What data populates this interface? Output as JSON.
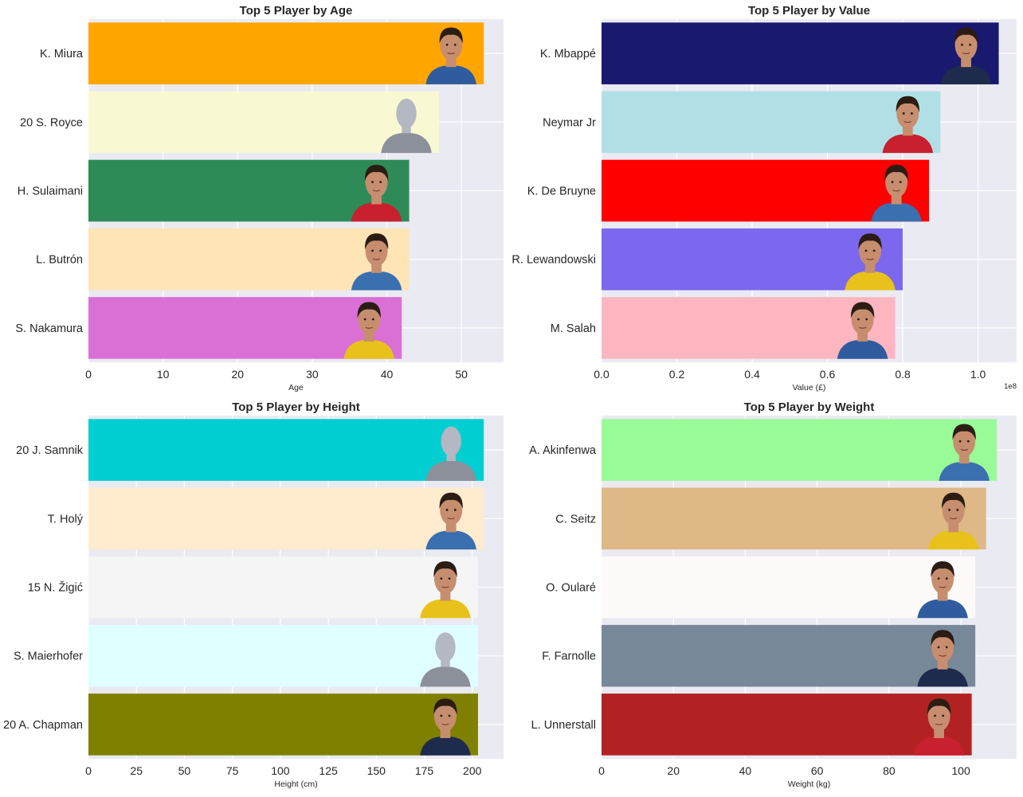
{
  "chart_data": [
    {
      "type": "bar",
      "orientation": "horizontal",
      "title": "Top 5 Player by Age",
      "xlabel": "Age",
      "ylabel": "",
      "xlim": [
        0,
        55.65
      ],
      "xticks": [
        0,
        10,
        20,
        30,
        40,
        50
      ],
      "xtick_labels": [
        "0",
        "10",
        "20",
        "30",
        "40",
        "50"
      ],
      "offset_text": "",
      "grid": true,
      "categories": [
        "K. Miura",
        "20 S. Royce",
        "H. Sulaimani",
        "L. Butrón",
        "S. Nakamura"
      ],
      "values": [
        53,
        47,
        43,
        43,
        42
      ],
      "colors": [
        "#FFA500",
        "#F8F9D2",
        "#2E8B57",
        "#FFE4B5",
        "#DA70D6"
      ],
      "photos": [
        "face",
        "silhouette",
        "face",
        "face",
        "face"
      ]
    },
    {
      "type": "bar",
      "orientation": "horizontal",
      "title": "Top 5 Player by Value",
      "xlabel": "Value (£)",
      "ylabel": "",
      "xlim": [
        0,
        1.1025
      ],
      "xticks": [
        0.0,
        0.2,
        0.4,
        0.6,
        0.8,
        1.0
      ],
      "xtick_labels": [
        "0.0",
        "0.2",
        "0.4",
        "0.6",
        "0.8",
        "1.0"
      ],
      "offset_text": "1e8",
      "grid": true,
      "categories": [
        "K. Mbappé",
        "Neymar Jr",
        "K. De Bruyne",
        "R. Lewandowski",
        "M. Salah"
      ],
      "values": [
        1.055,
        0.9,
        0.87,
        0.8,
        0.78
      ],
      "colors": [
        "#191970",
        "#B0E0E6",
        "#FF0000",
        "#7B68EE",
        "#FFB6C1"
      ],
      "photos": [
        "face",
        "face",
        "face",
        "face",
        "face"
      ]
    },
    {
      "type": "bar",
      "orientation": "horizontal",
      "title": "Top 5 Player by Height",
      "xlabel": "Height (cm)",
      "ylabel": "",
      "xlim": [
        0,
        216.3
      ],
      "xticks": [
        0,
        25,
        50,
        75,
        100,
        125,
        150,
        175,
        200
      ],
      "xtick_labels": [
        "0",
        "25",
        "50",
        "75",
        "100",
        "125",
        "150",
        "175",
        "200"
      ],
      "offset_text": "",
      "grid": true,
      "categories": [
        "20 J. Samnik",
        "T. Holý",
        "15 N. Žigić",
        "S. Maierhofer",
        "20 A. Chapman"
      ],
      "values": [
        206,
        206,
        203,
        203,
        203
      ],
      "colors": [
        "#00CED1",
        "#FFEBCD",
        "#F5F5F5",
        "#E0FFFF",
        "#808000"
      ],
      "photos": [
        "silhouette",
        "face",
        "face",
        "silhouette",
        "face"
      ]
    },
    {
      "type": "bar",
      "orientation": "horizontal",
      "title": "Top 5 Player by Weight",
      "xlabel": "Weight (kg)",
      "ylabel": "",
      "xlim": [
        0,
        115.5
      ],
      "xticks": [
        0,
        20,
        40,
        60,
        80,
        100
      ],
      "xtick_labels": [
        "0",
        "20",
        "40",
        "60",
        "80",
        "100"
      ],
      "offset_text": "",
      "grid": true,
      "categories": [
        "A. Akinfenwa",
        "C. Seitz",
        "O. Oularé",
        "F. Farnolle",
        "L. Unnerstall"
      ],
      "values": [
        110,
        107,
        104,
        104,
        103
      ],
      "colors": [
        "#98FB98",
        "#DEB887",
        "#FFFAFA",
        "#778899",
        "#B22222"
      ],
      "photos": [
        "face",
        "face",
        "face",
        "face",
        "face"
      ]
    }
  ],
  "style": {
    "plot_bg": "#EAEAF2",
    "grid": "#FFFFFF",
    "text": "#262626",
    "skin": "#C68E6E",
    "hair": "#2B1D14",
    "jersey": "#3A4A6B",
    "silhouette": "#B4B8C2"
  }
}
